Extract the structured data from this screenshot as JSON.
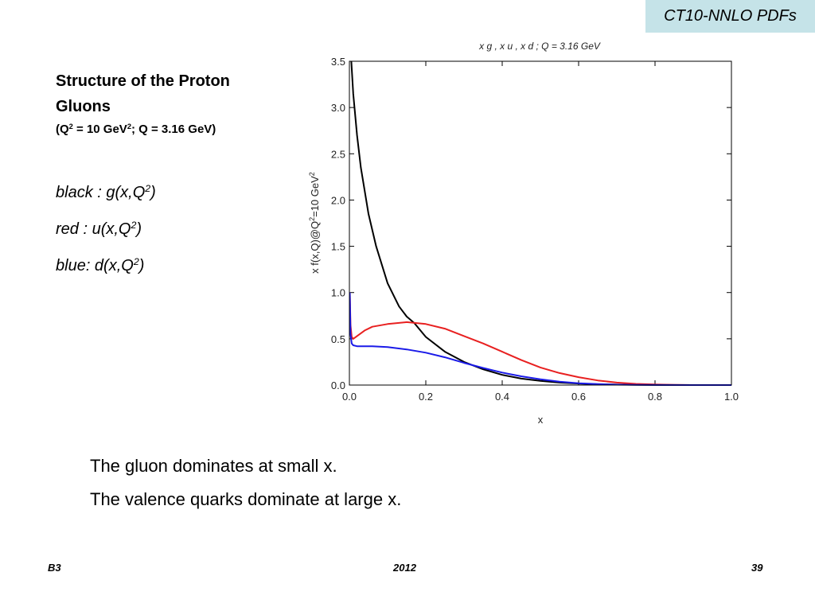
{
  "header": {
    "tag": "CT10-NNLO PDFs"
  },
  "heading": {
    "line1": "Structure of the Proton",
    "line2": "Gluons",
    "line3_a": "(Q",
    "line3_sup1": "2",
    "line3_b": " = 10 GeV",
    "line3_sup2": "2",
    "line3_c": "; Q = 3.16 GeV)"
  },
  "legend_notes": [
    {
      "text": "black : g(x,Q",
      "sup": "2",
      "close": ")"
    },
    {
      "text": "red : u(x,Q",
      "sup": "2",
      "close": ")"
    },
    {
      "text": "blue: d(x,Q",
      "sup": "2",
      "close": ")"
    }
  ],
  "summary": {
    "line1": "The gluon dominates at small x.",
    "line2": "The valence quarks dominate at large x."
  },
  "footer": {
    "left": "B3",
    "center": "2012",
    "right": "39"
  },
  "chart_data": {
    "type": "line",
    "title": "x g , x u , x d ; Q = 3.16 GeV",
    "xlabel": "x",
    "ylabel_main": "x f(x,Q)@Q",
    "ylabel_sup1": "2",
    "ylabel_end": "=10 GeV",
    "ylabel_sup2": "2",
    "xlim": [
      0.0,
      1.0
    ],
    "ylim": [
      0.0,
      3.5
    ],
    "xticks": [
      "0.0",
      "0.2",
      "0.4",
      "0.6",
      "0.8",
      "1.0"
    ],
    "yticks": [
      "0.0",
      "0.5",
      "1.0",
      "1.5",
      "2.0",
      "2.5",
      "3.0",
      "3.5"
    ],
    "grid": false,
    "series": [
      {
        "color": "#000000",
        "x": [
          0.005,
          0.01,
          0.02,
          0.03,
          0.05,
          0.07,
          0.1,
          0.13,
          0.15,
          0.17,
          0.2,
          0.25,
          0.3,
          0.35,
          0.4,
          0.45,
          0.5,
          0.55,
          0.6,
          0.65,
          0.7,
          0.8,
          0.9,
          1.0
        ],
        "y": [
          3.5,
          3.15,
          2.7,
          2.35,
          1.85,
          1.5,
          1.1,
          0.85,
          0.74,
          0.67,
          0.52,
          0.36,
          0.25,
          0.17,
          0.11,
          0.07,
          0.045,
          0.027,
          0.016,
          0.009,
          0.005,
          0.001,
          0.0,
          0.0
        ]
      },
      {
        "color": "#e82020",
        "x": [
          0.001,
          0.003,
          0.006,
          0.01,
          0.02,
          0.04,
          0.06,
          0.1,
          0.15,
          0.2,
          0.25,
          0.3,
          0.35,
          0.4,
          0.45,
          0.5,
          0.55,
          0.6,
          0.65,
          0.7,
          0.75,
          0.8,
          0.85,
          0.9,
          1.0
        ],
        "y": [
          1.0,
          0.65,
          0.52,
          0.5,
          0.53,
          0.59,
          0.63,
          0.66,
          0.68,
          0.66,
          0.61,
          0.53,
          0.45,
          0.36,
          0.27,
          0.19,
          0.13,
          0.085,
          0.05,
          0.027,
          0.013,
          0.006,
          0.002,
          0.0,
          0.0
        ]
      },
      {
        "color": "#1a1ae8",
        "x": [
          0.001,
          0.003,
          0.006,
          0.01,
          0.02,
          0.04,
          0.06,
          0.1,
          0.15,
          0.2,
          0.25,
          0.3,
          0.35,
          0.4,
          0.45,
          0.5,
          0.55,
          0.6,
          0.65,
          0.7,
          0.75,
          0.8,
          0.9,
          1.0
        ],
        "y": [
          1.0,
          0.55,
          0.45,
          0.43,
          0.42,
          0.42,
          0.42,
          0.41,
          0.385,
          0.35,
          0.3,
          0.24,
          0.185,
          0.135,
          0.095,
          0.062,
          0.037,
          0.02,
          0.01,
          0.004,
          0.002,
          0.001,
          0.0,
          0.0
        ]
      }
    ]
  }
}
